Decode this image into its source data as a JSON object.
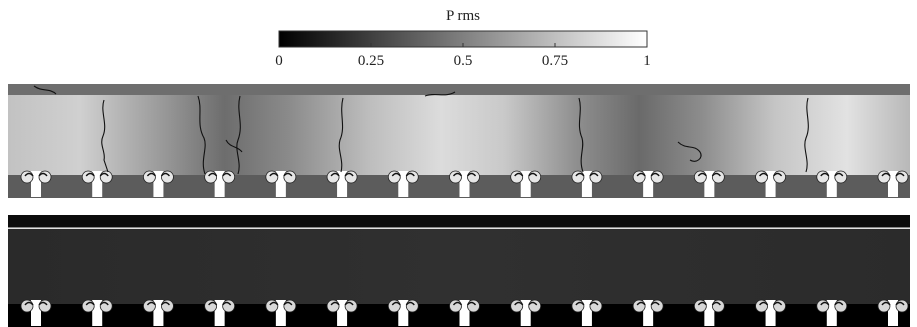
{
  "colorbar": {
    "title": "P  rms",
    "ticks": [
      "0",
      "0.25",
      "0.5",
      "0.75",
      "1"
    ],
    "min": 0,
    "max": 1,
    "colormap": [
      "#000000",
      "#ffffff"
    ]
  },
  "panels": [
    {
      "id": "upper",
      "cavity_count": 15,
      "band_color": "#6e6e6e",
      "duct_gradient": [
        [
          0.0,
          "#c2c2c2"
        ],
        [
          0.08,
          "#d0d0d0"
        ],
        [
          0.17,
          "#9a9a9a"
        ],
        [
          0.24,
          "#6d6d6d"
        ],
        [
          0.31,
          "#8a8a8a"
        ],
        [
          0.4,
          "#bdbdbd"
        ],
        [
          0.48,
          "#dcdcdc"
        ],
        [
          0.55,
          "#c9c9c9"
        ],
        [
          0.63,
          "#8f8f8f"
        ],
        [
          0.7,
          "#6a6a6a"
        ],
        [
          0.77,
          "#8d8d8d"
        ],
        [
          0.85,
          "#c5c5c5"
        ],
        [
          0.93,
          "#e2e2e2"
        ],
        [
          1.0,
          "#b8b8b8"
        ]
      ]
    },
    {
      "id": "lower",
      "cavity_count": 15,
      "band_color": "#0c0c0c",
      "duct_gradient": [
        [
          0.0,
          "#2a2a2a"
        ],
        [
          0.5,
          "#303030"
        ],
        [
          1.0,
          "#2b2b2b"
        ]
      ]
    }
  ]
}
